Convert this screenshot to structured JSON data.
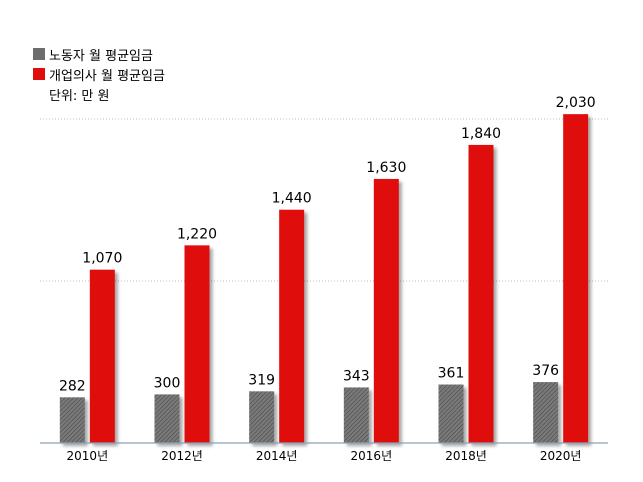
{
  "legend": {
    "worker_label": "노동자 월 평균임금",
    "doctor_label": "개업의사 월 평균임금",
    "unit_label": "단위: 만 원"
  },
  "colors": {
    "worker": "#6d6d6d",
    "doctor": "#e00d0d",
    "grid": "#bbbbbb",
    "axis": "#8aa2b4"
  },
  "chart_data": {
    "type": "bar",
    "categories": [
      "2010년",
      "2012년",
      "2014년",
      "2016년",
      "2018년",
      "2020년"
    ],
    "series": [
      {
        "name": "노동자 월 평균임금",
        "values": [
          282,
          300,
          319,
          343,
          361,
          376
        ],
        "labels": [
          "282",
          "300",
          "319",
          "343",
          "361",
          "376"
        ]
      },
      {
        "name": "개업의사 월 평균임금",
        "values": [
          1070,
          1220,
          1440,
          1630,
          1840,
          2030
        ],
        "labels": [
          "1,070",
          "1,220",
          "1,440",
          "1,630",
          "1,840",
          "2,030"
        ]
      }
    ],
    "ylim": [
      0,
      2500
    ],
    "grid": true,
    "legend_position": "top-left"
  }
}
